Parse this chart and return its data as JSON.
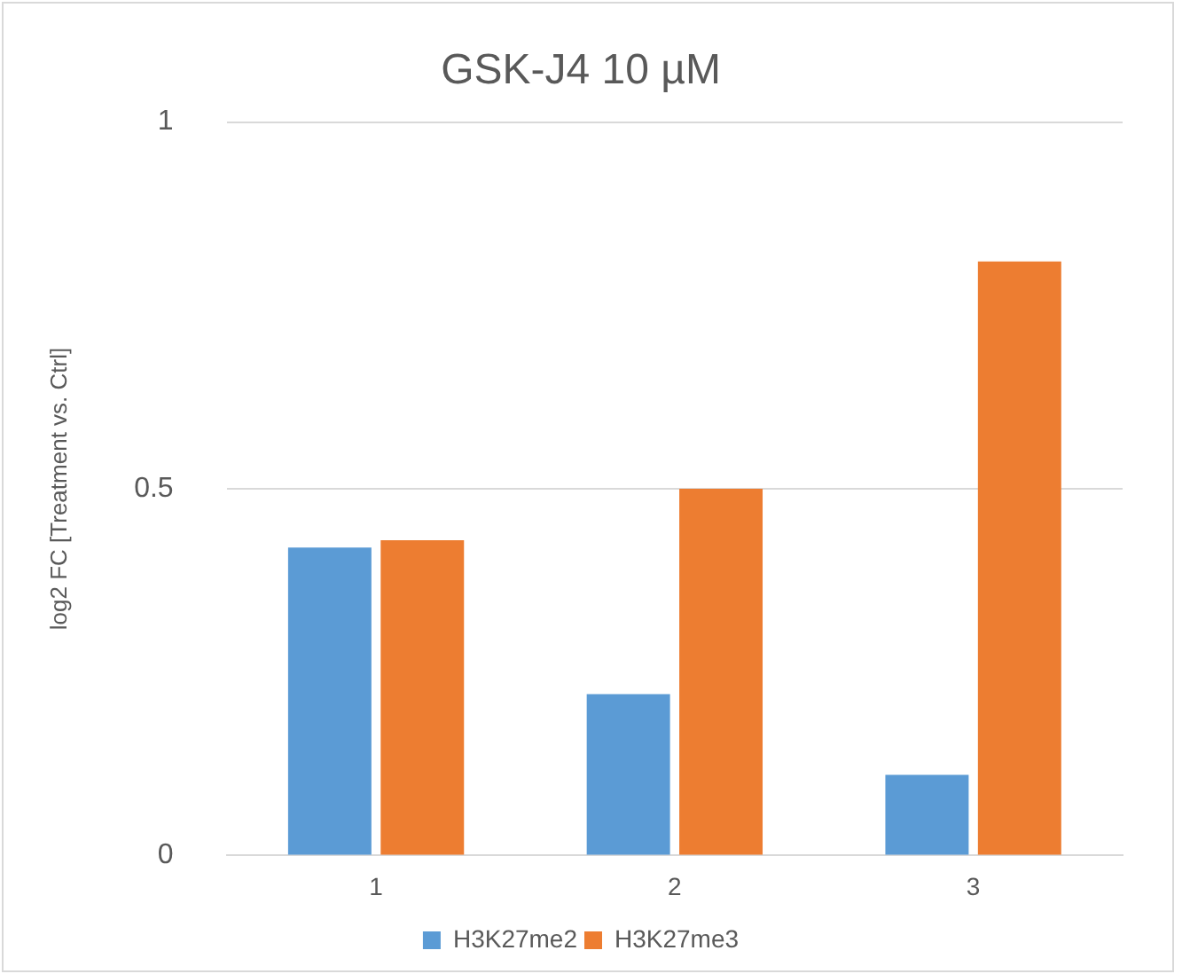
{
  "chart_data": {
    "type": "bar",
    "title": "GSK-J4 10 µM",
    "ylabel": "log2 FC [Treatment vs. Ctrl]",
    "categories": [
      "1",
      "2",
      "3"
    ],
    "series": [
      {
        "name": "H3K27me2",
        "color": "#5b9bd5",
        "values": [
          0.42,
          0.22,
          0.11
        ]
      },
      {
        "name": "H3K27me3",
        "color": "#ed7d31",
        "values": [
          0.43,
          0.5,
          0.81
        ]
      }
    ],
    "ylim": [
      0,
      1
    ],
    "yticks": [
      0,
      0.5,
      1
    ],
    "grid": "y",
    "legend": "bottom"
  }
}
